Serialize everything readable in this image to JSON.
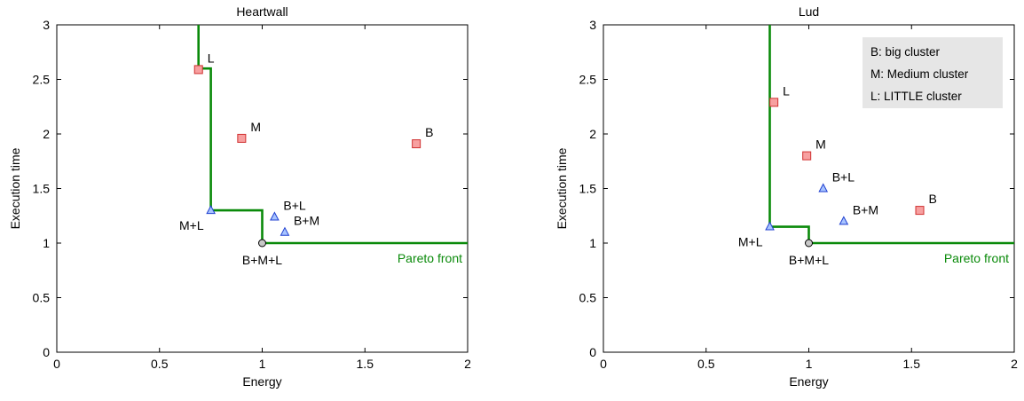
{
  "colors": {
    "pareto": "#0a8a0a",
    "square_fill": "#f7a0a0",
    "square_stroke": "#d03030",
    "triangle_stroke": "#1f3fd0",
    "triangle_fill": "#a8c4ff",
    "circle_fill": "#c8c8c8",
    "legend_bg": "#e6e6e6"
  },
  "chart_data": [
    {
      "type": "scatter",
      "title": "Heartwall",
      "xlabel": "Energy",
      "ylabel": "Execution time",
      "xlim": [
        0,
        2
      ],
      "ylim": [
        0,
        3
      ],
      "xticks": [
        "0",
        "0.5",
        "1",
        "1.5",
        "2"
      ],
      "yticks": [
        "0",
        "0.5",
        "1",
        "1.5",
        "2",
        "2.5",
        "3"
      ],
      "points": [
        {
          "label": "L",
          "x": 0.69,
          "y": 2.59,
          "marker": "square",
          "label_side": "above-right"
        },
        {
          "label": "M",
          "x": 0.9,
          "y": 1.96,
          "marker": "square",
          "label_side": "above-right"
        },
        {
          "label": "B",
          "x": 1.75,
          "y": 1.91,
          "marker": "square",
          "label_side": "above-right"
        },
        {
          "label": "M+L",
          "x": 0.75,
          "y": 1.3,
          "marker": "triangle",
          "label_side": "below-left"
        },
        {
          "label": "B+L",
          "x": 1.06,
          "y": 1.24,
          "marker": "triangle",
          "label_side": "above-right"
        },
        {
          "label": "B+M",
          "x": 1.11,
          "y": 1.1,
          "marker": "triangle",
          "label_side": "above-right"
        },
        {
          "label": "B+M+L",
          "x": 1.0,
          "y": 1.0,
          "marker": "circle",
          "label_side": "below"
        }
      ],
      "pareto_front": [
        [
          0.69,
          3.0
        ],
        [
          0.69,
          2.6
        ],
        [
          0.75,
          2.6
        ],
        [
          0.75,
          1.3
        ],
        [
          1.0,
          1.3
        ],
        [
          1.0,
          1.0
        ],
        [
          2.0,
          1.0
        ]
      ],
      "pareto_label": "Pareto front",
      "legend": []
    },
    {
      "type": "scatter",
      "title": "Lud",
      "xlabel": "Energy",
      "ylabel": "Execution time",
      "xlim": [
        0,
        2
      ],
      "ylim": [
        0,
        3
      ],
      "xticks": [
        "0",
        "0.5",
        "1",
        "1.5",
        "2"
      ],
      "yticks": [
        "0",
        "0.5",
        "1",
        "1.5",
        "2",
        "2.5",
        "3"
      ],
      "points": [
        {
          "label": "L",
          "x": 0.83,
          "y": 2.29,
          "marker": "square",
          "label_side": "above-right"
        },
        {
          "label": "M",
          "x": 0.99,
          "y": 1.8,
          "marker": "square",
          "label_side": "above-right"
        },
        {
          "label": "B",
          "x": 1.54,
          "y": 1.3,
          "marker": "square",
          "label_side": "above-right"
        },
        {
          "label": "B+L",
          "x": 1.07,
          "y": 1.5,
          "marker": "triangle",
          "label_side": "above-right"
        },
        {
          "label": "B+M",
          "x": 1.17,
          "y": 1.2,
          "marker": "triangle",
          "label_side": "above-right"
        },
        {
          "label": "M+L",
          "x": 0.81,
          "y": 1.15,
          "marker": "triangle",
          "label_side": "below-left"
        },
        {
          "label": "B+M+L",
          "x": 1.0,
          "y": 1.0,
          "marker": "circle",
          "label_side": "below"
        }
      ],
      "pareto_front": [
        [
          0.81,
          3.0
        ],
        [
          0.81,
          1.15
        ],
        [
          1.0,
          1.15
        ],
        [
          1.0,
          1.0
        ],
        [
          2.0,
          1.0
        ]
      ],
      "pareto_label": "Pareto front",
      "legend": [
        "B: big cluster",
        "M: Medium cluster",
        "L: LITTLE cluster"
      ],
      "legend_position": "top-right"
    }
  ]
}
